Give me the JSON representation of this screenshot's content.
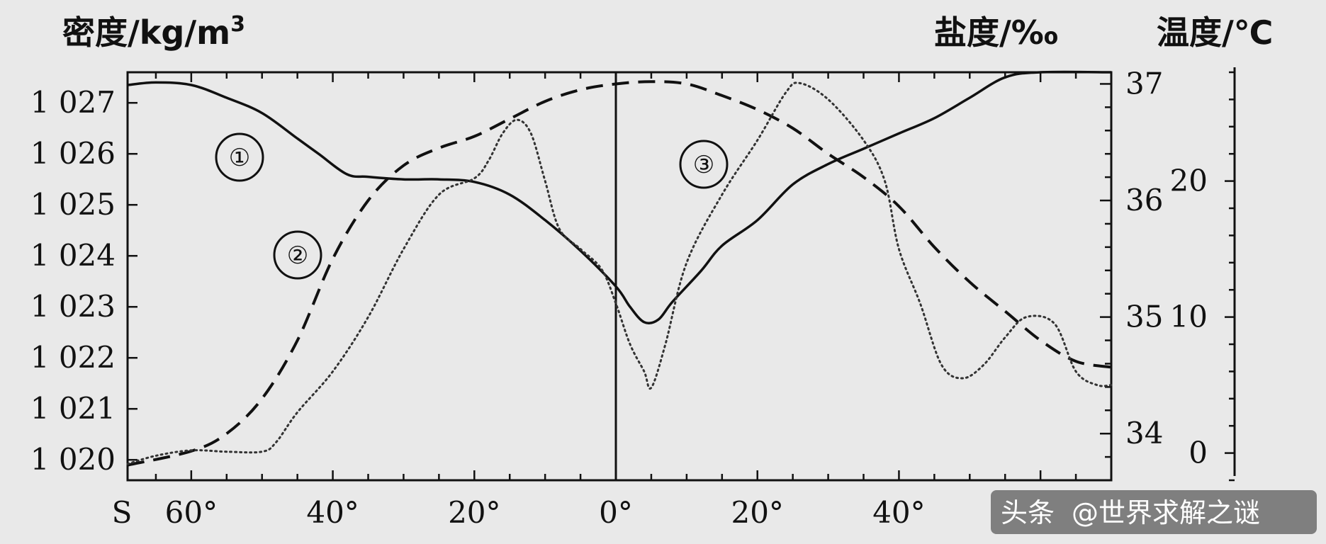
{
  "chart_data": {
    "type": "line",
    "axes": {
      "left_title": "密度/kg/m",
      "left_title_sup": "3",
      "right1_title": "盐度/‰",
      "right2_title": "温度/℃",
      "density_ticks": [
        "1 020",
        "1 021",
        "1 022",
        "1 023",
        "1 024",
        "1 025",
        "1 026",
        "1 027"
      ],
      "density_range": [
        1019.6,
        1027.6
      ],
      "salinity_ticks": [
        "34",
        "35",
        "36",
        "37"
      ],
      "salinity_range": [
        33.6,
        37.1
      ],
      "temperature_ticks": [
        "0",
        "10",
        "20"
      ],
      "temperature_range": [
        -2,
        28
      ],
      "x_ticks": [
        {
          "value": -60,
          "label": "60°"
        },
        {
          "value": -40,
          "label": "40°"
        },
        {
          "value": -20,
          "label": "20°"
        },
        {
          "value": 0,
          "label": "0°"
        },
        {
          "value": 20,
          "label": "20°"
        },
        {
          "value": 40,
          "label": "40°"
        }
      ],
      "x_prefix_label": "S",
      "x_range": [
        -69,
        70
      ]
    },
    "series": [
      {
        "id": "density",
        "axis": "density",
        "style": "solid",
        "points": [
          [
            -69,
            1027.35
          ],
          [
            -65,
            1027.4
          ],
          [
            -60,
            1027.35
          ],
          [
            -55,
            1027.1
          ],
          [
            -50,
            1026.8
          ],
          [
            -45,
            1026.3
          ],
          [
            -42,
            1026.0
          ],
          [
            -38,
            1025.6
          ],
          [
            -35,
            1025.55
          ],
          [
            -30,
            1025.5
          ],
          [
            -25,
            1025.5
          ],
          [
            -20,
            1025.45
          ],
          [
            -15,
            1025.2
          ],
          [
            -10,
            1024.7
          ],
          [
            -5,
            1024.1
          ],
          [
            0,
            1023.4
          ],
          [
            2,
            1023.0
          ],
          [
            4,
            1022.7
          ],
          [
            6,
            1022.75
          ],
          [
            8,
            1023.1
          ],
          [
            12,
            1023.7
          ],
          [
            15,
            1024.2
          ],
          [
            20,
            1024.7
          ],
          [
            25,
            1025.4
          ],
          [
            30,
            1025.8
          ],
          [
            35,
            1026.1
          ],
          [
            40,
            1026.4
          ],
          [
            45,
            1026.7
          ],
          [
            50,
            1027.1
          ],
          [
            55,
            1027.5
          ],
          [
            60,
            1027.6
          ],
          [
            70,
            1027.6
          ]
        ]
      },
      {
        "id": "salinity",
        "axis": "salinity",
        "style": "dashed",
        "points": [
          [
            -69,
            33.73
          ],
          [
            -60,
            33.85
          ],
          [
            -55,
            34.0
          ],
          [
            -50,
            34.3
          ],
          [
            -45,
            34.8
          ],
          [
            -40,
            35.5
          ],
          [
            -35,
            36.0
          ],
          [
            -30,
            36.3
          ],
          [
            -25,
            36.45
          ],
          [
            -20,
            36.55
          ],
          [
            -15,
            36.7
          ],
          [
            -10,
            36.85
          ],
          [
            -5,
            36.95
          ],
          [
            0,
            37.0
          ],
          [
            5,
            37.02
          ],
          [
            10,
            37.0
          ],
          [
            15,
            36.9
          ],
          [
            20,
            36.78
          ],
          [
            25,
            36.62
          ],
          [
            30,
            36.4
          ],
          [
            35,
            36.2
          ],
          [
            40,
            35.95
          ],
          [
            45,
            35.6
          ],
          [
            50,
            35.3
          ],
          [
            55,
            35.05
          ],
          [
            60,
            34.8
          ],
          [
            65,
            34.62
          ],
          [
            70,
            34.57
          ]
        ]
      },
      {
        "id": "temperature",
        "axis": "temperature",
        "style": "dotted",
        "points": [
          [
            -69,
            -0.8
          ],
          [
            -65,
            -0.2
          ],
          [
            -60,
            0.2
          ],
          [
            -55,
            0.1
          ],
          [
            -50,
            0.1
          ],
          [
            -48,
            0.8
          ],
          [
            -45,
            3
          ],
          [
            -40,
            6
          ],
          [
            -35,
            10
          ],
          [
            -30,
            15
          ],
          [
            -25,
            19
          ],
          [
            -20,
            20.2
          ],
          [
            -18,
            21.5
          ],
          [
            -16,
            23.5
          ],
          [
            -14,
            24.5
          ],
          [
            -12,
            23.5
          ],
          [
            -10,
            20
          ],
          [
            -8,
            16.5
          ],
          [
            -5,
            15
          ],
          [
            -2,
            13.5
          ],
          [
            0,
            11
          ],
          [
            2,
            8
          ],
          [
            4,
            6
          ],
          [
            5,
            4.8
          ],
          [
            7,
            8
          ],
          [
            10,
            14
          ],
          [
            15,
            19
          ],
          [
            20,
            23
          ],
          [
            24,
            26.5
          ],
          [
            26,
            27.2
          ],
          [
            30,
            26
          ],
          [
            35,
            23
          ],
          [
            38,
            20
          ],
          [
            40,
            15
          ],
          [
            43,
            11
          ],
          [
            46,
            6.5
          ],
          [
            49,
            5.5
          ],
          [
            52,
            6.5
          ],
          [
            55,
            8.5
          ],
          [
            58,
            10
          ],
          [
            62,
            9.5
          ],
          [
            65,
            6
          ],
          [
            68,
            5
          ],
          [
            70,
            5
          ]
        ]
      }
    ],
    "series_markers": [
      "①",
      "②",
      "③"
    ]
  },
  "watermark": {
    "brand": "头条",
    "handle": "@世界求解之谜"
  }
}
